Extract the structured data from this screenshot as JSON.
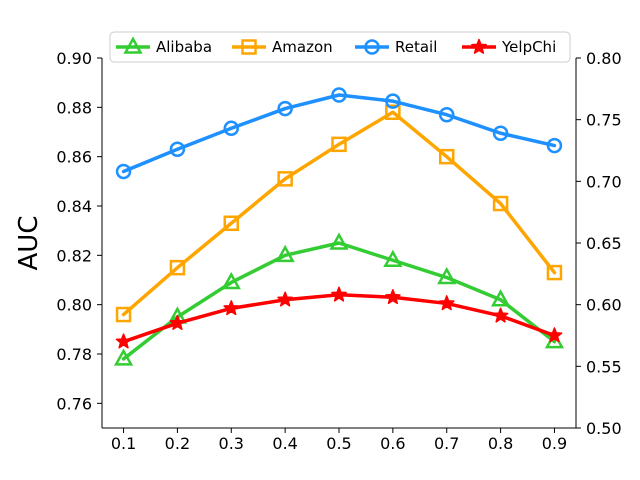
{
  "chart_data": {
    "type": "line",
    "title": "",
    "xlabel": "",
    "ylabel": "AUC",
    "x": [
      0.1,
      0.2,
      0.3,
      0.4,
      0.5,
      0.6,
      0.7,
      0.8,
      0.9
    ],
    "x_tick_labels": [
      "0.1",
      "0.2",
      "0.3",
      "0.4",
      "0.5",
      "0.6",
      "0.7",
      "0.8",
      "0.9"
    ],
    "xlim": [
      0.06,
      0.94
    ],
    "ylim_left": [
      0.75,
      0.9
    ],
    "ylim_right": [
      0.5,
      0.8
    ],
    "left_tick_values": [
      0.76,
      0.78,
      0.8,
      0.82,
      0.84,
      0.86,
      0.88,
      0.9
    ],
    "left_tick_labels": [
      "0.76",
      "0.78",
      "0.80",
      "0.82",
      "0.84",
      "0.86",
      "0.88",
      "0.90"
    ],
    "right_tick_values": [
      0.5,
      0.55,
      0.6,
      0.65,
      0.7,
      0.75,
      0.8
    ],
    "right_tick_labels": [
      "0.50",
      "0.55",
      "0.60",
      "0.65",
      "0.70",
      "0.75",
      "0.80"
    ],
    "legend_position": "top-center",
    "grid": false,
    "series": [
      {
        "name": "Alibaba",
        "axis": "left",
        "color": "#33cc33",
        "marker": "triangle",
        "values": [
          0.778,
          0.795,
          0.809,
          0.82,
          0.825,
          0.818,
          0.811,
          0.802,
          0.785
        ]
      },
      {
        "name": "Amazon",
        "axis": "left",
        "color": "#ffa500",
        "marker": "square",
        "values": [
          0.796,
          0.815,
          0.833,
          0.851,
          0.865,
          0.878,
          0.86,
          0.841,
          0.813
        ]
      },
      {
        "name": "Retail",
        "axis": "right",
        "color": "#1e90ff",
        "marker": "circle",
        "values": [
          0.708,
          0.726,
          0.743,
          0.759,
          0.77,
          0.765,
          0.754,
          0.739,
          0.729
        ]
      },
      {
        "name": "YelpChi",
        "axis": "left",
        "color": "#ff0000",
        "marker": "star",
        "values": [
          0.785,
          0.7925,
          0.7985,
          0.802,
          0.804,
          0.803,
          0.8005,
          0.7955,
          0.7875
        ]
      }
    ]
  }
}
